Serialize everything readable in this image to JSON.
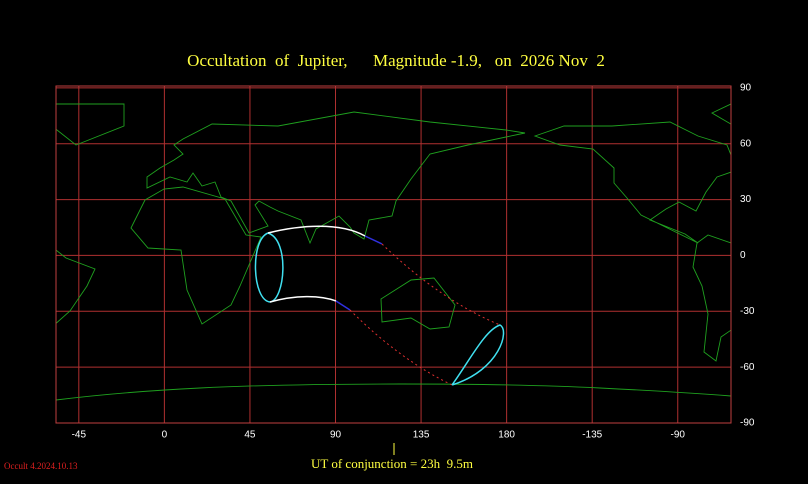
{
  "title": "Occultation  of  Jupiter,      Magnitude -1.9,   on  2026 Nov  2",
  "map": {
    "xlim": [
      -57,
      298
    ],
    "ylim": [
      -90,
      91
    ],
    "lon_ticks": [
      -45,
      0,
      45,
      90,
      135,
      180,
      {
        "value": 225,
        "label": "-135"
      },
      {
        "value": 270,
        "label": "-90"
      }
    ],
    "lat_ticks": [
      90,
      60,
      30,
      0,
      -30,
      -60,
      -90
    ]
  },
  "footer": "UT of conjunction = 23h  9.5m",
  "version": "Occult 4.2024.10.13"
}
